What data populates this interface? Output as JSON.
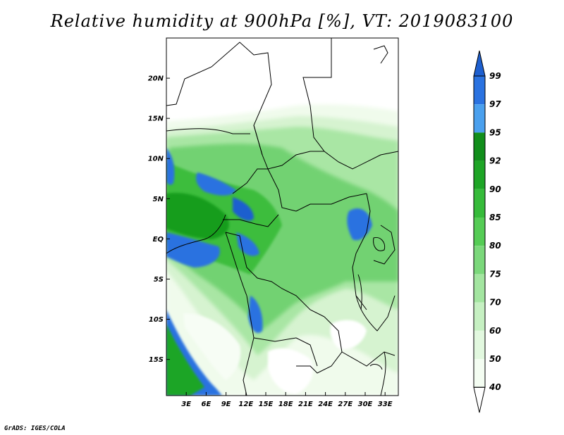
{
  "title": "Relative humidity at 900hPa [%], VT: 2019083100",
  "credit": "GrADS: IGES/COLA",
  "map": {
    "lat_labels": [
      {
        "value": 20,
        "label": "20N"
      },
      {
        "value": 15,
        "label": "15N"
      },
      {
        "value": 10,
        "label": "10N"
      },
      {
        "value": 5,
        "label": "5N"
      },
      {
        "value": 0,
        "label": "EQ"
      },
      {
        "value": -5,
        "label": "5S"
      },
      {
        "value": -10,
        "label": "10S"
      },
      {
        "value": -15,
        "label": "15S"
      }
    ],
    "lon_labels": [
      {
        "value": 3,
        "label": "3E"
      },
      {
        "value": 6,
        "label": "6E"
      },
      {
        "value": 9,
        "label": "9E"
      },
      {
        "value": 12,
        "label": "12E"
      },
      {
        "value": 15,
        "label": "15E"
      },
      {
        "value": 18,
        "label": "18E"
      },
      {
        "value": 21,
        "label": "21E"
      },
      {
        "value": 24,
        "label": "24E"
      },
      {
        "value": 27,
        "label": "27E"
      },
      {
        "value": 30,
        "label": "30E"
      },
      {
        "value": 33,
        "label": "33E"
      }
    ],
    "lon_range": [
      0,
      35
    ],
    "lat_range": [
      -19.5,
      25
    ]
  },
  "colorbar": {
    "levels": [
      "99",
      "97",
      "95",
      "92",
      "90",
      "85",
      "80",
      "75",
      "70",
      "60",
      "50",
      "40"
    ],
    "colors": [
      "#1d5fcf",
      "#2a72e0",
      "#4aa0ee",
      "#118e1b",
      "#1ea526",
      "#36bb3a",
      "#55cc55",
      "#7bd87b",
      "#a3e5a0",
      "#c6f0c2",
      "#e2f8df",
      "#f4fdf2",
      "#ffffff"
    ]
  }
}
